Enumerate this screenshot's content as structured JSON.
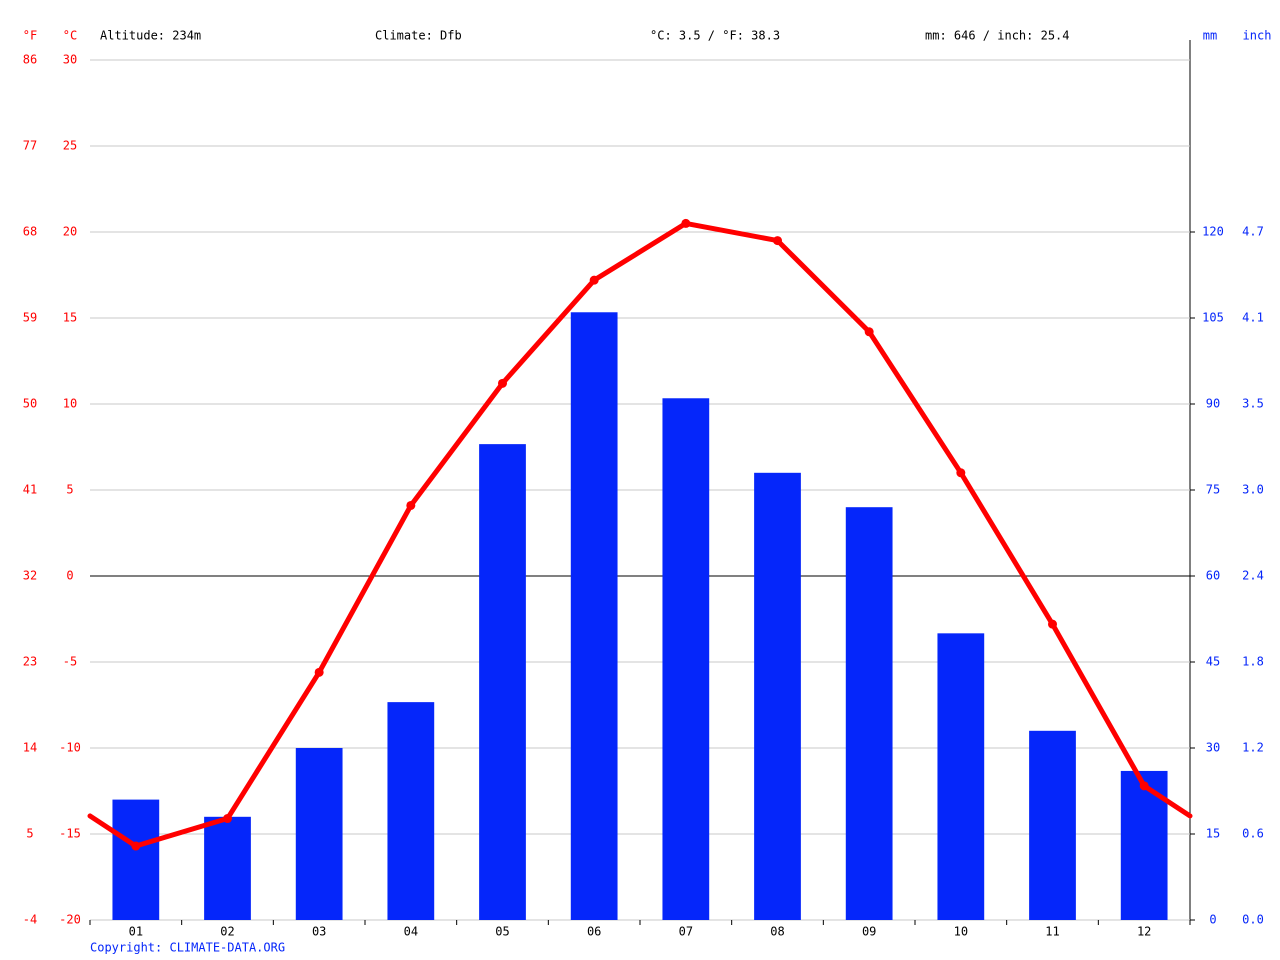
{
  "chart_data": {
    "type": "combo",
    "annotations": [
      "Altitude: 234m",
      "Climate: Dfb",
      "°C: 3.5 / °F: 38.3",
      "mm: 646 / inch: 25.4"
    ],
    "y_label": "°C",
    "y_label_f": "°F",
    "y2_label": "mm",
    "y2_label_inch": "inch",
    "copyright": "Copyright: CLIMATE-DATA.ORG",
    "categories": [
      "01",
      "02",
      "03",
      "04",
      "05",
      "06",
      "07",
      "08",
      "09",
      "10",
      "11",
      "12"
    ],
    "ylim": [
      -20,
      30
    ],
    "yticks": [
      -20,
      -15,
      -10,
      -5,
      0,
      5,
      10,
      15,
      20,
      25,
      30
    ],
    "y_fahrenheit_labels": [
      -4,
      5,
      14,
      23,
      32,
      41,
      50,
      59,
      68,
      77,
      86
    ],
    "y2lim": [
      0,
      150
    ],
    "y2ticks": [
      0,
      15,
      30,
      45,
      60,
      75,
      90,
      105,
      120
    ],
    "y2_inch_labels": [
      "0.0",
      "0.6",
      "1.2",
      "1.8",
      "2.4",
      "3.0",
      "3.5",
      "4.1",
      "4.7"
    ],
    "grid": true,
    "series": [
      {
        "type": "bar",
        "axis": "y2",
        "color": "#0526fa",
        "values": [
          21,
          18,
          30,
          38,
          83,
          106,
          91,
          78,
          72,
          50,
          33,
          26
        ]
      },
      {
        "type": "line",
        "axis": "y",
        "color": "#ff0000",
        "values": [
          -15.7,
          -14.1,
          -5.6,
          4.1,
          11.2,
          17.2,
          20.5,
          19.5,
          14.2,
          6.0,
          -2.8,
          -12.2
        ]
      }
    ]
  }
}
